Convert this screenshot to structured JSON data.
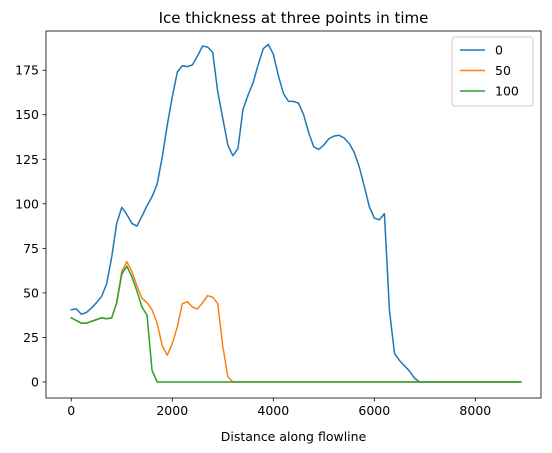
{
  "chart_data": {
    "type": "line",
    "title": "Ice thickness at three points in time",
    "xlabel": "Distance along flowline",
    "ylabel": "",
    "xlim": [
      -500,
      9300
    ],
    "ylim": [
      -9,
      197
    ],
    "xticks": [
      0,
      2000,
      4000,
      6000,
      8000
    ],
    "xtick_labels": [
      "0",
      "2000",
      "4000",
      "6000",
      "8000"
    ],
    "yticks": [
      0,
      25,
      50,
      75,
      100,
      125,
      150,
      175
    ],
    "ytick_labels": [
      "0",
      "25",
      "50",
      "75",
      "100",
      "125",
      "150",
      "175"
    ],
    "grid": false,
    "legend_position": "top-right",
    "series": [
      {
        "name": "0",
        "color": "#1f77b4",
        "x": [
          0,
          100,
          200,
          300,
          400,
          500,
          600,
          700,
          800,
          900,
          1000,
          1100,
          1200,
          1300,
          1400,
          1500,
          1600,
          1700,
          1800,
          1900,
          2000,
          2100,
          2200,
          2300,
          2400,
          2500,
          2600,
          2700,
          2800,
          2900,
          3000,
          3100,
          3200,
          3300,
          3400,
          3500,
          3600,
          3700,
          3800,
          3900,
          4000,
          4100,
          4200,
          4300,
          4400,
          4500,
          4600,
          4700,
          4800,
          4900,
          5000,
          5100,
          5200,
          5300,
          5400,
          5500,
          5600,
          5700,
          5800,
          5900,
          6000,
          6100,
          6200,
          6300,
          6400,
          6500,
          6600,
          6700,
          6800,
          6900,
          7000,
          7500,
          8000,
          8500,
          8900
        ],
        "values": [
          40.5,
          41,
          38,
          39,
          41.5,
          44.5,
          48,
          55,
          70,
          89,
          98,
          94,
          89,
          87.5,
          93,
          99,
          104,
          111,
          126,
          144,
          160,
          174,
          177.5,
          177,
          178,
          183,
          188.5,
          188,
          185,
          163,
          148,
          133,
          127,
          131,
          153,
          161,
          168,
          178,
          187,
          189.5,
          184,
          172,
          162,
          157.5,
          157.5,
          156.5,
          150,
          140,
          132,
          130.5,
          133,
          136.5,
          138,
          138.5,
          137,
          134,
          129,
          121,
          110,
          98.5,
          92,
          91,
          94.5,
          40,
          16,
          12,
          9,
          6,
          2,
          0,
          0,
          0,
          0,
          0,
          0
        ]
      },
      {
        "name": "50",
        "color": "#ff7f0e",
        "x": [
          0,
          100,
          200,
          300,
          400,
          500,
          600,
          700,
          800,
          900,
          1000,
          1100,
          1200,
          1300,
          1400,
          1500,
          1600,
          1700,
          1800,
          1900,
          2000,
          2100,
          2200,
          2300,
          2400,
          2500,
          2600,
          2700,
          2800,
          2900,
          3000,
          3100,
          3200,
          3300,
          4000,
          5000,
          6000,
          7000,
          8000,
          8900
        ],
        "values": [
          36,
          34.5,
          33,
          33,
          34,
          35,
          36,
          35.5,
          36,
          44.5,
          62,
          67.5,
          62,
          54,
          47,
          44.5,
          40.5,
          33,
          20.5,
          15,
          21.5,
          31,
          44,
          45,
          42,
          41,
          44.5,
          48.5,
          47.5,
          44,
          20,
          3,
          0,
          0,
          0,
          0,
          0,
          0,
          0,
          0
        ]
      },
      {
        "name": "100",
        "color": "#2ca02c",
        "x": [
          0,
          100,
          200,
          300,
          400,
          500,
          600,
          700,
          800,
          900,
          1000,
          1100,
          1200,
          1300,
          1400,
          1500,
          1600,
          1700,
          1800,
          2000,
          3000,
          4000,
          5000,
          6000,
          7000,
          8000,
          8900
        ],
        "values": [
          36,
          34.5,
          33,
          33,
          34,
          35,
          36,
          35.5,
          36,
          44.5,
          60.5,
          65,
          59,
          51,
          42,
          37.5,
          6.5,
          0,
          0,
          0,
          0,
          0,
          0,
          0,
          0,
          0,
          0
        ]
      }
    ]
  }
}
